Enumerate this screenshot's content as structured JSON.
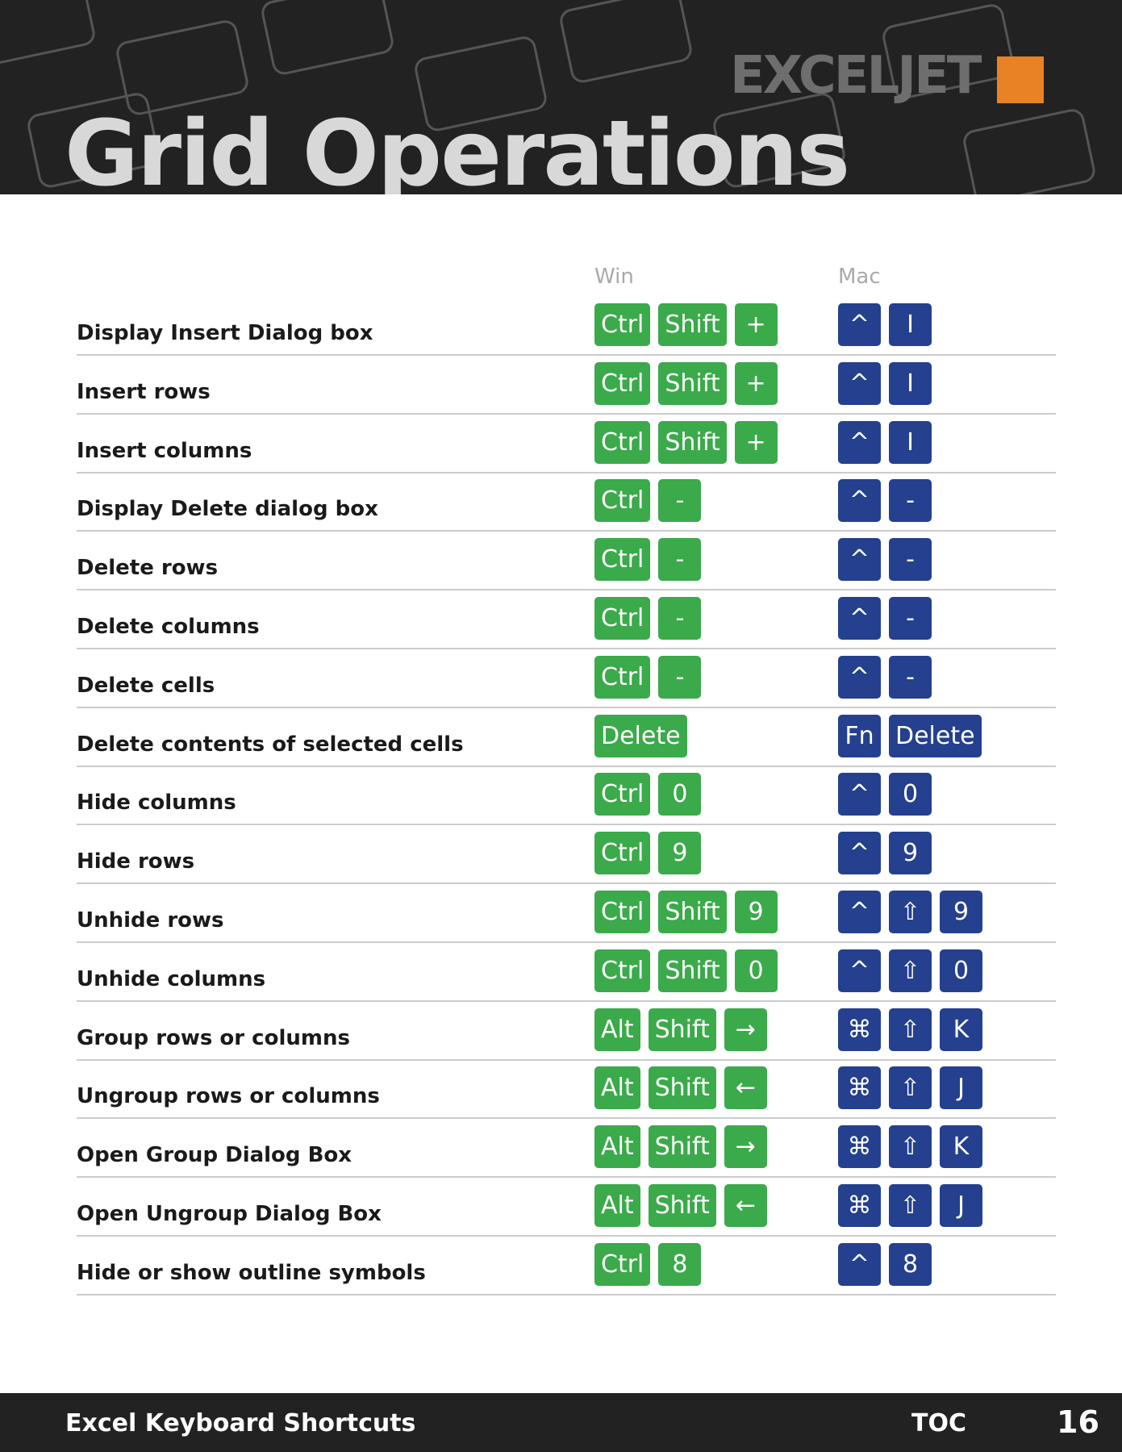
{
  "header": {
    "title": "Grid Operations",
    "logo": "EXCELJET"
  },
  "columns": [
    "Win",
    "Mac"
  ],
  "rows": [
    {
      "action": "Display Insert Dialog box",
      "win": [
        "Ctrl",
        "Shift",
        "+"
      ],
      "mac": [
        "^",
        "I"
      ]
    },
    {
      "action": "Insert rows",
      "win": [
        "Ctrl",
        "Shift",
        "+"
      ],
      "mac": [
        "^",
        "I"
      ]
    },
    {
      "action": "Insert columns",
      "win": [
        "Ctrl",
        "Shift",
        "+"
      ],
      "mac": [
        "^",
        "I"
      ]
    },
    {
      "action": "Display Delete dialog box",
      "win": [
        "Ctrl",
        "-"
      ],
      "mac": [
        "^",
        "-"
      ]
    },
    {
      "action": "Delete rows",
      "win": [
        "Ctrl",
        "-"
      ],
      "mac": [
        "^",
        "-"
      ]
    },
    {
      "action": "Delete columns",
      "win": [
        "Ctrl",
        "-"
      ],
      "mac": [
        "^",
        "-"
      ]
    },
    {
      "action": "Delete cells",
      "win": [
        "Ctrl",
        "-"
      ],
      "mac": [
        "^",
        "-"
      ]
    },
    {
      "action": "Delete contents of selected cells",
      "win": [
        "Delete"
      ],
      "mac": [
        "Fn",
        "Delete"
      ]
    },
    {
      "action": "Hide columns",
      "win": [
        "Ctrl",
        "0"
      ],
      "mac": [
        "^",
        "0"
      ]
    },
    {
      "action": "Hide rows",
      "win": [
        "Ctrl",
        "9"
      ],
      "mac": [
        "^",
        "9"
      ]
    },
    {
      "action": "Unhide rows",
      "win": [
        "Ctrl",
        "Shift",
        "9"
      ],
      "mac": [
        "^",
        "⇧",
        "9"
      ]
    },
    {
      "action": "Unhide columns",
      "win": [
        "Ctrl",
        "Shift",
        "0"
      ],
      "mac": [
        "^",
        "⇧",
        "0"
      ]
    },
    {
      "action": "Group rows or columns",
      "win": [
        "Alt",
        "Shift",
        "→"
      ],
      "mac": [
        "⌘",
        "⇧",
        "K"
      ]
    },
    {
      "action": "Ungroup rows or columns",
      "win": [
        "Alt",
        "Shift",
        "←"
      ],
      "mac": [
        "⌘",
        "⇧",
        "J"
      ]
    },
    {
      "action": "Open Group Dialog Box",
      "win": [
        "Alt",
        "Shift",
        "→"
      ],
      "mac": [
        "⌘",
        "⇧",
        "K"
      ]
    },
    {
      "action": "Open Ungroup Dialog Box",
      "win": [
        "Alt",
        "Shift",
        "←"
      ],
      "mac": [
        "⌘",
        "⇧",
        "J"
      ]
    },
    {
      "action": "Hide or show outline symbols",
      "win": [
        "Ctrl",
        "8"
      ],
      "mac": [
        "^",
        "8"
      ]
    }
  ],
  "footer": {
    "title": "Excel Keyboard Shortcuts",
    "toc": "TOC",
    "page": "16"
  }
}
